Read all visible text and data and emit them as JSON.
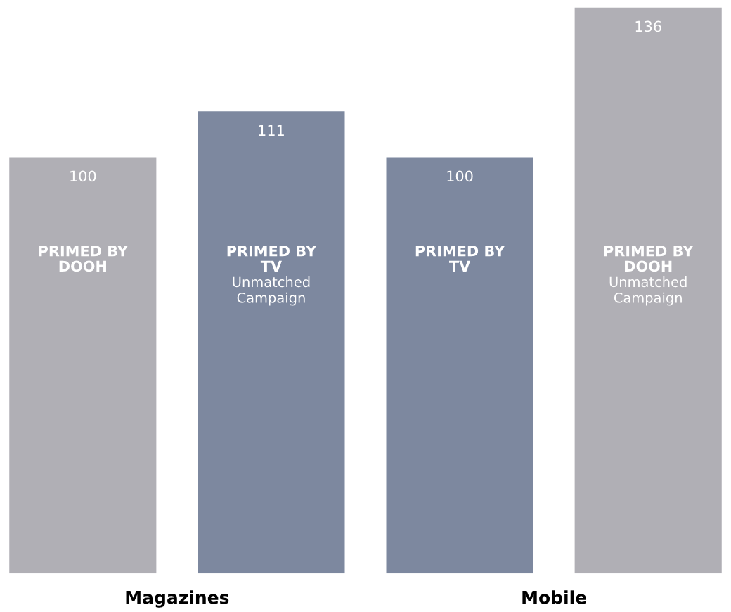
{
  "chart_data": {
    "type": "bar",
    "categories": [
      "PRIMED BY\nDOOH",
      "PRIMED BY\nTV\nUnmatched\nCampaign",
      "PRIMED BY\nTV",
      "PRIMED BY\nDOOH\nUnmatched\nCampaign"
    ],
    "values": [
      100,
      111,
      100,
      136
    ],
    "colors": [
      "#b0afb5",
      "#7d889f",
      "#7d889f",
      "#b0afb5"
    ],
    "data_labels": true,
    "annotations": [
      "Magazines",
      "Mobile"
    ]
  }
}
